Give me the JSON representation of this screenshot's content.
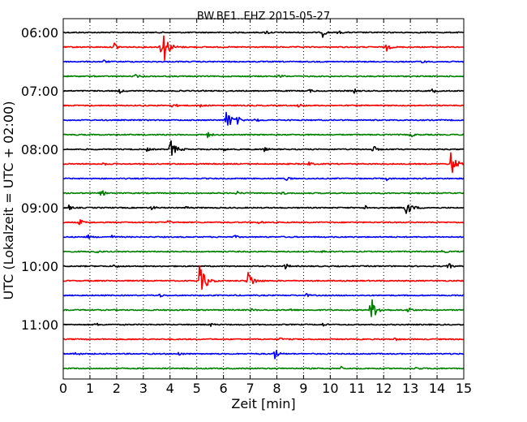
{
  "chart_data": {
    "type": "line",
    "title": "BW.BE1..EHZ 2015-05-27",
    "xlabel": "Zeit  [min]",
    "ylabel": "UTC (Lokalzeit = UTC + 02:00)",
    "xlim": [
      0,
      15
    ],
    "x_ticks": [
      "0",
      "1",
      "2",
      "3",
      "4",
      "5",
      "6",
      "7",
      "8",
      "9",
      "10",
      "11",
      "12",
      "13",
      "14",
      "15"
    ],
    "y_ticks": [
      "06:00",
      "07:00",
      "08:00",
      "09:00",
      "10:00",
      "11:00"
    ],
    "grid": "vertical dotted",
    "trace_colors": [
      "#000000",
      "#ff0000",
      "#0000ff",
      "#008000"
    ],
    "trace_window_min": 15,
    "start_time": "06:00",
    "traces": [
      {
        "start": "06:00",
        "events": [
          {
            "t": 7.6,
            "a": 0.3
          },
          {
            "t": 9.7,
            "a": 0.6
          },
          {
            "t": 10.3,
            "a": 0.2
          }
        ]
      },
      {
        "start": "06:15",
        "events": [
          {
            "t": 1.9,
            "a": 0.7
          },
          {
            "t": 3.6,
            "a": 1.0
          },
          {
            "t": 3.75,
            "a": 1.8
          },
          {
            "t": 12.1,
            "a": 0.6
          }
        ]
      },
      {
        "start": "06:30",
        "events": [
          {
            "t": 1.5,
            "a": 0.2
          },
          {
            "t": 13.4,
            "a": 0.2
          }
        ]
      },
      {
        "start": "06:45",
        "events": [
          {
            "t": 2.7,
            "a": 0.2
          },
          {
            "t": 8.1,
            "a": 0.3
          }
        ]
      },
      {
        "start": "07:00",
        "events": [
          {
            "t": 2.1,
            "a": 0.3
          },
          {
            "t": 9.2,
            "a": 0.2
          },
          {
            "t": 10.9,
            "a": 0.2
          },
          {
            "t": 13.8,
            "a": 0.35
          }
        ]
      },
      {
        "start": "07:15",
        "events": [
          {
            "t": 4.1,
            "a": 0.4
          },
          {
            "t": 5.1,
            "a": 0.3
          },
          {
            "t": 8.8,
            "a": 0.3
          }
        ]
      },
      {
        "start": "07:30",
        "events": [
          {
            "t": 6.05,
            "a": 1.7
          },
          {
            "t": 6.5,
            "a": 0.5
          },
          {
            "t": 7.2,
            "a": 0.3
          }
        ]
      },
      {
        "start": "07:45",
        "events": [
          {
            "t": 5.4,
            "a": 0.4
          },
          {
            "t": 13.0,
            "a": 0.3
          }
        ]
      },
      {
        "start": "08:00",
        "events": [
          {
            "t": 3.1,
            "a": 0.3
          },
          {
            "t": 4.0,
            "a": 1.2
          },
          {
            "t": 6.0,
            "a": 0.2
          },
          {
            "t": 7.5,
            "a": 0.3
          },
          {
            "t": 11.6,
            "a": 0.5
          }
        ]
      },
      {
        "start": "08:15",
        "events": [
          {
            "t": 1.5,
            "a": 0.2
          },
          {
            "t": 9.2,
            "a": 0.2
          },
          {
            "t": 14.5,
            "a": 1.6
          }
        ]
      },
      {
        "start": "08:30",
        "events": [
          {
            "t": 8.3,
            "a": 0.3
          },
          {
            "t": 12.1,
            "a": 0.2
          }
        ]
      },
      {
        "start": "08:45",
        "events": [
          {
            "t": 1.4,
            "a": 0.6
          },
          {
            "t": 6.5,
            "a": 0.2
          },
          {
            "t": 8.2,
            "a": 0.2
          }
        ]
      },
      {
        "start": "09:00",
        "events": [
          {
            "t": 0.2,
            "a": 0.3
          },
          {
            "t": 3.3,
            "a": 0.3
          },
          {
            "t": 4.6,
            "a": 0.2
          },
          {
            "t": 11.3,
            "a": 0.3
          },
          {
            "t": 12.8,
            "a": 1.2
          }
        ]
      },
      {
        "start": "09:15",
        "events": [
          {
            "t": 0.6,
            "a": 0.5
          },
          {
            "t": 3.9,
            "a": 0.2
          },
          {
            "t": 7.3,
            "a": 0.2
          }
        ]
      },
      {
        "start": "09:30",
        "events": [
          {
            "t": 0.9,
            "a": 0.3
          },
          {
            "t": 1.8,
            "a": 0.2
          },
          {
            "t": 6.4,
            "a": 0.2
          }
        ]
      },
      {
        "start": "09:45",
        "events": [
          {
            "t": 1.2,
            "a": 0.2
          },
          {
            "t": 9.7,
            "a": 0.2
          },
          {
            "t": 14.2,
            "a": 0.2
          }
        ]
      },
      {
        "start": "10:00",
        "events": [
          {
            "t": 1.9,
            "a": 0.3
          },
          {
            "t": 8.3,
            "a": 0.4
          },
          {
            "t": 14.4,
            "a": 0.5
          }
        ]
      },
      {
        "start": "10:15",
        "events": [
          {
            "t": 5.1,
            "a": 1.8
          },
          {
            "t": 5.3,
            "a": 0.6
          },
          {
            "t": 6.9,
            "a": 1.3
          }
        ]
      },
      {
        "start": "10:30",
        "events": [
          {
            "t": 3.6,
            "a": 0.2
          },
          {
            "t": 9.1,
            "a": 0.2
          }
        ]
      },
      {
        "start": "10:45",
        "events": [
          {
            "t": 7.0,
            "a": 0.2
          },
          {
            "t": 8.5,
            "a": 0.2
          },
          {
            "t": 11.5,
            "a": 1.7
          },
          {
            "t": 12.9,
            "a": 0.5
          }
        ]
      },
      {
        "start": "11:00",
        "events": [
          {
            "t": 1.2,
            "a": 0.2
          },
          {
            "t": 5.5,
            "a": 0.2
          },
          {
            "t": 9.7,
            "a": 0.2
          }
        ]
      },
      {
        "start": "11:15",
        "events": [
          {
            "t": 8.1,
            "a": 0.2
          },
          {
            "t": 12.4,
            "a": 0.2
          }
        ]
      },
      {
        "start": "11:30",
        "events": [
          {
            "t": 0.4,
            "a": 0.3
          },
          {
            "t": 4.3,
            "a": 0.3
          },
          {
            "t": 7.9,
            "a": 0.9
          }
        ]
      },
      {
        "start": "11:45",
        "events": [
          {
            "t": 10.4,
            "a": 0.2
          },
          {
            "t": 13.2,
            "a": 0.2
          }
        ]
      }
    ]
  }
}
